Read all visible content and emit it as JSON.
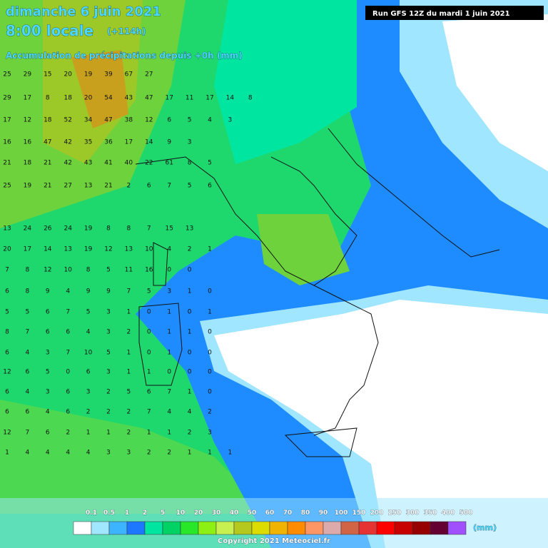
{
  "header": {
    "date": "dimanche 6 juin 2021",
    "time": "8:00 locale",
    "lead": "(+114h)",
    "subtitle": "Accumulation de précipitations depuis +0h (mm)",
    "run": "Run GFS 12Z du mardi 1 juin 2021"
  },
  "grid": {
    "rows": [
      {
        "y": 104,
        "values": [
          25,
          29,
          15,
          20,
          19,
          39,
          67,
          27
        ]
      },
      {
        "y": 137,
        "values": [
          29,
          17,
          8,
          18,
          20,
          54,
          43,
          47,
          17,
          11,
          17,
          14,
          8
        ]
      },
      {
        "y": 168,
        "values": [
          17,
          12,
          18,
          52,
          34,
          47,
          38,
          12,
          6,
          5,
          4,
          3
        ]
      },
      {
        "y": 199,
        "values": [
          16,
          16,
          47,
          42,
          35,
          36,
          17,
          14,
          9,
          3
        ]
      },
      {
        "y": 228,
        "values": [
          21,
          18,
          21,
          42,
          43,
          41,
          40,
          22,
          61,
          8,
          5
        ]
      },
      {
        "y": 260,
        "values": [
          25,
          19,
          21,
          27,
          13,
          21,
          2,
          6,
          7,
          5,
          6
        ]
      },
      {
        "y": 320,
        "values": [
          13,
          24,
          26,
          24,
          19,
          8,
          8,
          7,
          15,
          13
        ]
      },
      {
        "y": 349,
        "values": [
          20,
          17,
          14,
          13,
          19,
          12,
          13,
          10,
          4,
          2,
          1
        ]
      },
      {
        "y": 378,
        "values": [
          7,
          8,
          12,
          10,
          8,
          5,
          11,
          16,
          0,
          0
        ]
      },
      {
        "y": 408,
        "values": [
          6,
          8,
          9,
          4,
          9,
          9,
          7,
          5,
          3,
          1,
          0
        ]
      },
      {
        "y": 437,
        "values": [
          5,
          5,
          6,
          7,
          5,
          3,
          1,
          0,
          1,
          0,
          1
        ]
      },
      {
        "y": 465,
        "values": [
          8,
          7,
          6,
          6,
          4,
          3,
          2,
          0,
          1,
          1,
          0
        ]
      },
      {
        "y": 494,
        "values": [
          6,
          4,
          3,
          7,
          10,
          5,
          1,
          0,
          1,
          0,
          0
        ]
      },
      {
        "y": 521,
        "values": [
          12,
          6,
          5,
          0,
          6,
          3,
          1,
          1,
          0,
          0,
          0
        ]
      },
      {
        "y": 549,
        "values": [
          6,
          4,
          3,
          6,
          3,
          2,
          5,
          6,
          7,
          1,
          0
        ]
      },
      {
        "y": 577,
        "values": [
          6,
          6,
          4,
          6,
          2,
          2,
          2,
          7,
          4,
          4,
          2
        ]
      },
      {
        "y": 606,
        "values": [
          12,
          7,
          6,
          2,
          1,
          1,
          2,
          1,
          1,
          2,
          3
        ]
      },
      {
        "y": 634,
        "values": [
          1,
          4,
          4,
          4,
          4,
          3,
          3,
          2,
          2,
          1,
          1,
          1
        ]
      }
    ]
  },
  "legend": {
    "unit": "(mm)",
    "entries": [
      {
        "label": "0.1",
        "color": "#ffffff"
      },
      {
        "label": "0.5",
        "color": "#a0e6ff"
      },
      {
        "label": "1",
        "color": "#3cb4ff"
      },
      {
        "label": "2",
        "color": "#1e78ff"
      },
      {
        "label": "5",
        "color": "#00e6a0"
      },
      {
        "label": "10",
        "color": "#00d264"
      },
      {
        "label": "20",
        "color": "#28e628"
      },
      {
        "label": "30",
        "color": "#8cf014"
      },
      {
        "label": "40",
        "color": "#c8f050"
      },
      {
        "label": "50",
        "color": "#b4c81e"
      },
      {
        "label": "60",
        "color": "#dcdc00"
      },
      {
        "label": "70",
        "color": "#f0b400"
      },
      {
        "label": "80",
        "color": "#ff8c00"
      },
      {
        "label": "90",
        "color": "#ff9664"
      },
      {
        "label": "100",
        "color": "#dcaaaa"
      },
      {
        "label": "150",
        "color": "#d26446"
      },
      {
        "label": "200",
        "color": "#e63232"
      },
      {
        "label": "250",
        "color": "#ff0000"
      },
      {
        "label": "300",
        "color": "#c80000"
      },
      {
        "label": "350",
        "color": "#960000"
      },
      {
        "label": "400",
        "color": "#640032"
      },
      {
        "label": "500",
        "color": "#a050ff"
      }
    ]
  },
  "footer": {
    "copyright": "Copyright 2021 Meteociel.fr"
  }
}
